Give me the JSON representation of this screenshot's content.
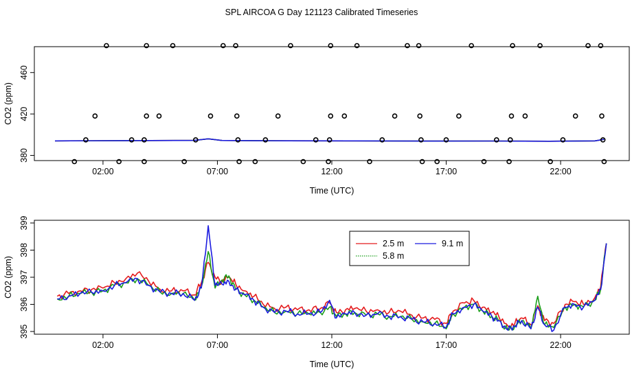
{
  "figure_title": "SPL AIRCOA G  Day 121123  Calibrated Timeseries",
  "colors": {
    "c25": "#e41a1c",
    "c58": "#1a9e1a",
    "c91": "#1a1adf",
    "axis": "#000000"
  },
  "chart_data": [
    {
      "type": "scatter",
      "xlabel": "Time (UTC)",
      "ylabel": "CO2 (ppm)",
      "xlim": [
        -1.0,
        25.0
      ],
      "ylim": [
        375,
        485
      ],
      "x_ticks": [
        {
          "v": 2,
          "label": "02:00"
        },
        {
          "v": 7,
          "label": "07:00"
        },
        {
          "v": 12,
          "label": "12:00"
        },
        {
          "v": 17,
          "label": "17:00"
        },
        {
          "v": 22,
          "label": "22:00"
        }
      ],
      "y_ticks": [
        {
          "v": 380,
          "label": "380"
        },
        {
          "v": 420,
          "label": "420"
        },
        {
          "v": 460,
          "label": "460"
        }
      ],
      "outliers": [
        {
          "x": 0.75,
          "y": 374
        },
        {
          "x": 1.25,
          "y": 395
        },
        {
          "x": 1.65,
          "y": 418
        },
        {
          "x": 2.15,
          "y": 486
        },
        {
          "x": 2.7,
          "y": 374
        },
        {
          "x": 3.25,
          "y": 395
        },
        {
          "x": 3.8,
          "y": 374
        },
        {
          "x": 3.8,
          "y": 395
        },
        {
          "x": 3.9,
          "y": 418
        },
        {
          "x": 3.9,
          "y": 486
        },
        {
          "x": 4.45,
          "y": 418
        },
        {
          "x": 5.05,
          "y": 486
        },
        {
          "x": 5.55,
          "y": 374
        },
        {
          "x": 6.05,
          "y": 395
        },
        {
          "x": 6.7,
          "y": 418
        },
        {
          "x": 7.25,
          "y": 486
        },
        {
          "x": 7.8,
          "y": 486
        },
        {
          "x": 7.85,
          "y": 418
        },
        {
          "x": 7.9,
          "y": 395
        },
        {
          "x": 7.95,
          "y": 374
        },
        {
          "x": 8.65,
          "y": 374
        },
        {
          "x": 9.1,
          "y": 395
        },
        {
          "x": 9.65,
          "y": 418
        },
        {
          "x": 10.2,
          "y": 486
        },
        {
          "x": 10.75,
          "y": 374
        },
        {
          "x": 11.3,
          "y": 395
        },
        {
          "x": 11.85,
          "y": 374
        },
        {
          "x": 11.9,
          "y": 395
        },
        {
          "x": 11.95,
          "y": 418
        },
        {
          "x": 11.95,
          "y": 486
        },
        {
          "x": 12.55,
          "y": 418
        },
        {
          "x": 13.1,
          "y": 486
        },
        {
          "x": 13.65,
          "y": 374
        },
        {
          "x": 14.2,
          "y": 395
        },
        {
          "x": 14.75,
          "y": 418
        },
        {
          "x": 15.3,
          "y": 486
        },
        {
          "x": 15.8,
          "y": 486
        },
        {
          "x": 15.85,
          "y": 418
        },
        {
          "x": 15.9,
          "y": 395
        },
        {
          "x": 15.95,
          "y": 374
        },
        {
          "x": 16.6,
          "y": 374
        },
        {
          "x": 17.0,
          "y": 395
        },
        {
          "x": 17.55,
          "y": 418
        },
        {
          "x": 18.1,
          "y": 486
        },
        {
          "x": 18.65,
          "y": 374
        },
        {
          "x": 19.2,
          "y": 395
        },
        {
          "x": 19.75,
          "y": 374
        },
        {
          "x": 19.8,
          "y": 395
        },
        {
          "x": 19.85,
          "y": 418
        },
        {
          "x": 19.9,
          "y": 486
        },
        {
          "x": 20.45,
          "y": 418
        },
        {
          "x": 21.1,
          "y": 486
        },
        {
          "x": 21.55,
          "y": 374
        },
        {
          "x": 22.1,
          "y": 395
        },
        {
          "x": 22.65,
          "y": 418
        },
        {
          "x": 23.2,
          "y": 486
        },
        {
          "x": 23.75,
          "y": 486
        },
        {
          "x": 23.8,
          "y": 418
        },
        {
          "x": 23.85,
          "y": 395
        },
        {
          "x": 23.9,
          "y": 374
        }
      ],
      "baseline": {
        "x": [
          -0.1,
          3.0,
          6.0,
          6.6,
          7.2,
          10.0,
          13.0,
          16.0,
          19.0,
          21.5,
          23.5,
          23.9
        ],
        "y": [
          394.0,
          394.3,
          394.5,
          396.0,
          394.4,
          394.1,
          394.0,
          393.8,
          393.9,
          393.7,
          394.0,
          395.5
        ]
      }
    },
    {
      "type": "line",
      "xlabel": "Time (UTC)",
      "ylabel": "CO2 (ppm)",
      "xlim": [
        -1.0,
        25.0
      ],
      "ylim": [
        394.9,
        399.1
      ],
      "x_ticks": [
        {
          "v": 2,
          "label": "02:00"
        },
        {
          "v": 7,
          "label": "07:00"
        },
        {
          "v": 12,
          "label": "12:00"
        },
        {
          "v": 17,
          "label": "17:00"
        },
        {
          "v": 22,
          "label": "22:00"
        }
      ],
      "y_ticks": [
        {
          "v": 395,
          "label": "395"
        },
        {
          "v": 396,
          "label": "396"
        },
        {
          "v": 397,
          "label": "397"
        },
        {
          "v": 398,
          "label": "398"
        },
        {
          "v": 399,
          "label": "399"
        }
      ],
      "legend": {
        "items": [
          "2.5 m",
          "5.8 m",
          "9.1 m"
        ],
        "placement": "top-center"
      },
      "knots": {
        "x": [
          0.0,
          0.5,
          1.0,
          1.5,
          2.0,
          2.5,
          3.0,
          3.5,
          4.0,
          4.5,
          5.0,
          5.5,
          6.0,
          6.3,
          6.6,
          6.9,
          7.2,
          7.5,
          7.8,
          8.2,
          8.6,
          9.0,
          9.5,
          10.0,
          10.5,
          11.0,
          11.5,
          11.9,
          12.2,
          12.6,
          13.0,
          13.5,
          14.0,
          14.5,
          15.0,
          15.5,
          16.0,
          16.5,
          17.0,
          17.3,
          17.8,
          18.2,
          18.6,
          19.0,
          19.3,
          19.7,
          20.0,
          20.3,
          20.7,
          21.0,
          21.3,
          21.7,
          22.2,
          22.6,
          23.0,
          23.5,
          23.75,
          24.0
        ],
        "y": [
          396.25,
          396.35,
          396.45,
          396.5,
          396.55,
          396.75,
          396.85,
          397.0,
          396.75,
          396.5,
          396.45,
          396.45,
          396.25,
          396.7,
          397.7,
          396.8,
          396.8,
          396.9,
          396.6,
          396.4,
          396.2,
          395.95,
          395.75,
          395.8,
          395.7,
          395.7,
          395.75,
          396.0,
          395.6,
          395.7,
          395.75,
          395.65,
          395.7,
          395.6,
          395.6,
          395.5,
          395.4,
          395.35,
          395.2,
          395.7,
          395.95,
          396.05,
          395.8,
          395.6,
          395.45,
          395.1,
          395.25,
          395.45,
          395.15,
          395.9,
          395.3,
          395.2,
          395.95,
          396.05,
          395.95,
          396.2,
          396.6,
          398.25
        ]
      },
      "series": [
        {
          "name": "2.5 m",
          "values": [
            396.3,
            396.4,
            396.5,
            396.55,
            396.6,
            396.8,
            396.95,
            397.15,
            396.85,
            396.55,
            396.5,
            396.5,
            396.35,
            396.8,
            397.55,
            397.0,
            396.85,
            397.0,
            396.75,
            396.5,
            396.3,
            396.0,
            395.85,
            395.9,
            395.8,
            395.8,
            395.85,
            396.05,
            395.7,
            395.8,
            395.85,
            395.75,
            395.8,
            395.7,
            395.75,
            395.6,
            395.5,
            395.45,
            395.3,
            395.75,
            396.05,
            396.15,
            395.9,
            395.7,
            395.55,
            395.2,
            395.3,
            395.5,
            395.25,
            395.95,
            395.4,
            395.3,
            396.0,
            396.1,
            396.0,
            396.25,
            396.65,
            398.25
          ]
        },
        {
          "name": "5.8 m",
          "values": [
            396.2,
            396.3,
            396.4,
            396.45,
            396.5,
            396.7,
            396.8,
            396.95,
            396.7,
            396.45,
            396.4,
            396.4,
            396.15,
            396.65,
            397.95,
            396.6,
            396.9,
            397.05,
            396.55,
            396.35,
            396.15,
            395.9,
            395.7,
            395.75,
            395.65,
            395.65,
            395.7,
            395.9,
            395.55,
            395.65,
            395.7,
            395.6,
            395.65,
            395.55,
            395.55,
            395.45,
            395.35,
            395.3,
            395.1,
            395.65,
            395.9,
            396.0,
            395.75,
            395.55,
            395.4,
            395.05,
            395.2,
            395.4,
            395.1,
            396.3,
            395.25,
            395.15,
            395.9,
            396.0,
            395.9,
            396.15,
            396.55,
            398.25
          ]
        },
        {
          "name": "9.1 m",
          "values": [
            396.2,
            396.3,
            396.4,
            396.45,
            396.5,
            396.7,
            396.8,
            396.95,
            396.7,
            396.45,
            396.4,
            396.4,
            396.15,
            396.6,
            398.9,
            396.7,
            396.75,
            396.85,
            396.55,
            396.35,
            396.15,
            395.9,
            395.7,
            395.75,
            395.65,
            395.65,
            395.7,
            396.15,
            395.5,
            395.65,
            395.7,
            395.6,
            395.65,
            395.55,
            395.55,
            395.45,
            395.35,
            395.3,
            395.15,
            395.65,
            395.9,
            396.0,
            395.75,
            395.55,
            395.4,
            395.05,
            395.2,
            395.4,
            395.1,
            395.9,
            395.25,
            395.05,
            395.9,
            396.0,
            395.9,
            396.15,
            396.55,
            398.25
          ]
        }
      ]
    }
  ]
}
